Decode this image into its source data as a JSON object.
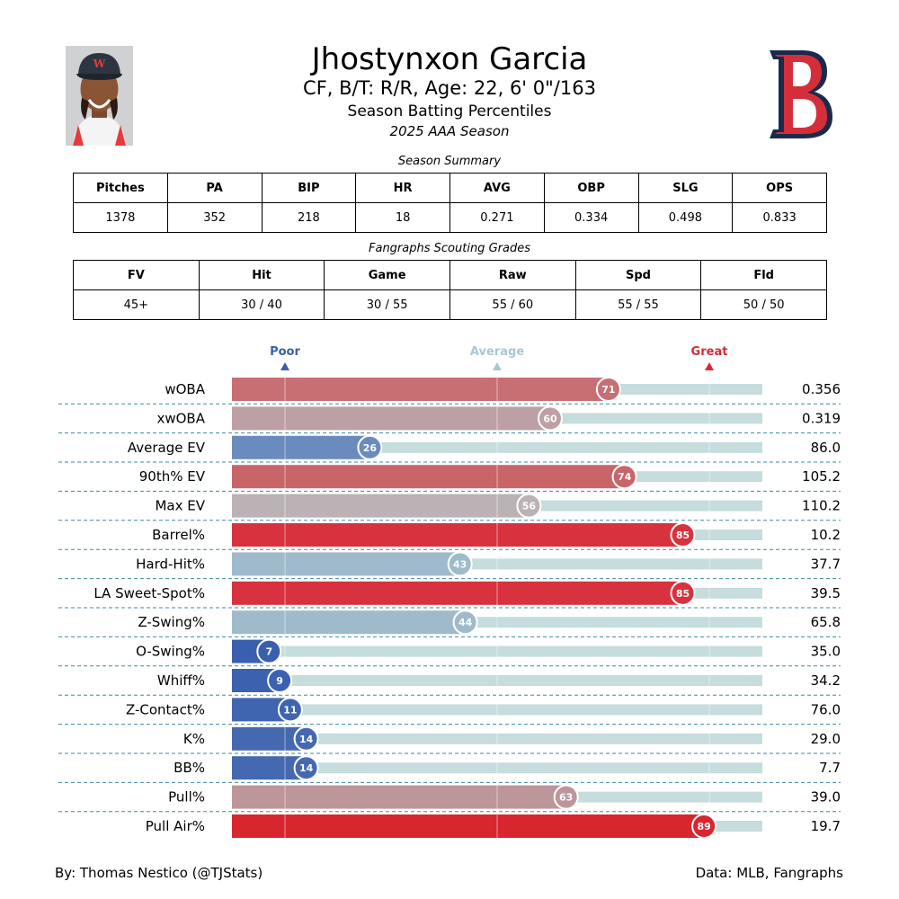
{
  "player": {
    "name": "Jhostynxon Garcia",
    "info": "CF, B/T: R/R, Age: 22, 6' 0\"/163",
    "subtitle": "Season Batting Percentiles",
    "season": "2025 AAA Season"
  },
  "summary": {
    "caption": "Season Summary",
    "headers": [
      "Pitches",
      "PA",
      "BIP",
      "HR",
      "AVG",
      "OBP",
      "SLG",
      "OPS"
    ],
    "values": [
      "1378",
      "352",
      "218",
      "18",
      "0.271",
      "0.334",
      "0.498",
      "0.833"
    ]
  },
  "grades": {
    "caption": "Fangraphs Scouting Grades",
    "headers": [
      "FV",
      "Hit",
      "Game",
      "Raw",
      "Spd",
      "Fld"
    ],
    "values": [
      "45+",
      "30 / 40",
      "30 / 55",
      "55 / 60",
      "55 / 55",
      "50 / 50"
    ]
  },
  "chart_data": {
    "type": "bar",
    "orientation": "horizontal",
    "xlim": [
      0,
      100
    ],
    "markers": [
      {
        "label": "Poor",
        "value": 10,
        "color": "#3a5fad"
      },
      {
        "label": "Average",
        "value": 50,
        "color": "#a8c8d0"
      },
      {
        "label": "Great",
        "value": 90,
        "color": "#d62b36"
      }
    ],
    "categories": [
      "wOBA",
      "xwOBA",
      "Average EV",
      "90th% EV",
      "Max EV",
      "Barrel%",
      "Hard-Hit%",
      "LA Sweet-Spot%",
      "Z-Swing%",
      "O-Swing%",
      "Whiff%",
      "Z-Contact%",
      "K%",
      "BB%",
      "Pull%",
      "Pull Air%"
    ],
    "percentiles": [
      71,
      60,
      26,
      74,
      56,
      85,
      43,
      85,
      44,
      7,
      9,
      11,
      14,
      14,
      63,
      89
    ],
    "stat_values": [
      "0.356",
      "0.319",
      "86.0",
      "105.2",
      "110.2",
      "10.2",
      "37.7",
      "39.5",
      "65.8",
      "35.0",
      "34.2",
      "76.0",
      "29.0",
      "7.7",
      "39.0",
      "19.7"
    ],
    "colors": [
      "#c86f74",
      "#bda0a4",
      "#6a8bbd",
      "#c86569",
      "#bab2b4",
      "#d7323d",
      "#9fbbcb",
      "#d7323d",
      "#9fbbcb",
      "#3a5fae",
      "#3b61af",
      "#3f65b1",
      "#4569b1",
      "#4569b1",
      "#bd969a",
      "#d8262f"
    ],
    "track_color": "#c6dcdd"
  },
  "footer": {
    "credit": "By: Thomas Nestico (@TJStats)",
    "source": "Data: MLB, Fangraphs"
  }
}
